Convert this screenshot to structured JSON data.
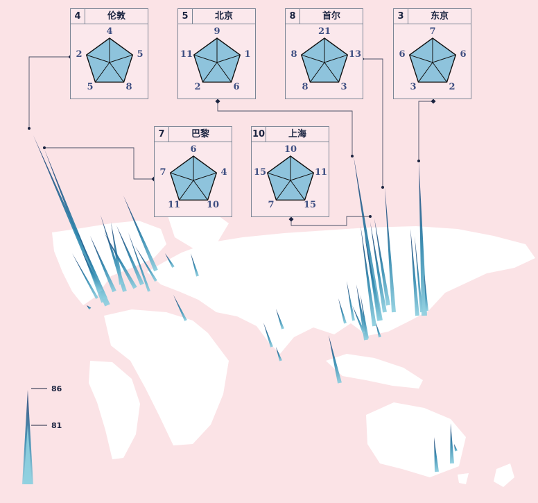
{
  "cities": [
    {
      "rank": "4",
      "name": "伦敦",
      "values": [
        4,
        5,
        8,
        5,
        2
      ]
    },
    {
      "rank": "5",
      "name": "北京",
      "values": [
        9,
        1,
        6,
        2,
        11
      ]
    },
    {
      "rank": "8",
      "name": "首尔",
      "values": [
        21,
        13,
        3,
        8,
        8
      ]
    },
    {
      "rank": "3",
      "name": "东京",
      "values": [
        7,
        6,
        2,
        3,
        6
      ]
    },
    {
      "rank": "7",
      "name": "巴黎",
      "values": [
        6,
        4,
        10,
        11,
        7
      ]
    },
    {
      "rank": "10",
      "name": "上海",
      "values": [
        10,
        11,
        15,
        7,
        15
      ]
    }
  ],
  "legend": {
    "ticks": [
      86,
      81
    ]
  },
  "colors": {
    "background": "#fbe3e6",
    "land": "#ffffff",
    "spike_dark": "#1e3a6e",
    "spike_light": "#7fc4d8",
    "radar_fill": "#8ec3dc"
  }
}
